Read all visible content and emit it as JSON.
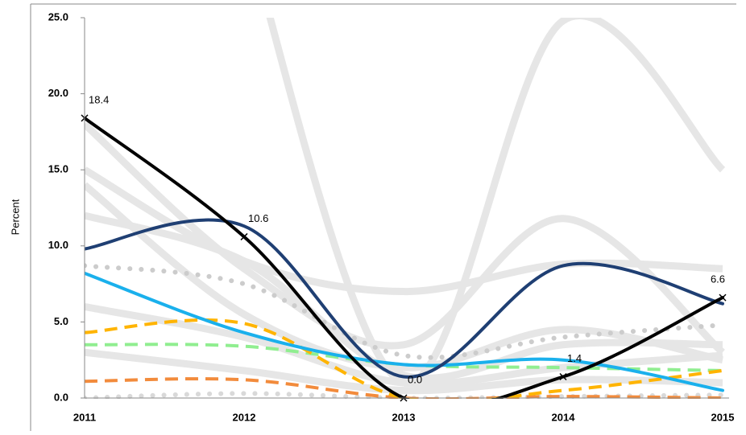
{
  "chart_data": {
    "type": "line",
    "y_label": "Percent",
    "categories": [
      "2011",
      "2012",
      "2013",
      "2014",
      "2015"
    ],
    "ylim": [
      0,
      25
    ],
    "yticks": [
      {
        "value": 0,
        "label": "0.0"
      },
      {
        "value": 5,
        "label": "5.0"
      },
      {
        "value": 10,
        "label": "10.0"
      },
      {
        "value": 15,
        "label": "15.0"
      },
      {
        "value": 20,
        "label": "20.0"
      },
      {
        "value": 25,
        "label": "25.0"
      }
    ],
    "smooth": true,
    "series": [
      {
        "color": "#e6e6e6",
        "style": "background",
        "values": [
          null,
          31,
          1.0,
          24.8,
          15.0
        ]
      },
      {
        "color": "#e6e6e6",
        "style": "background",
        "values": [
          18.0,
          8.5,
          3.5,
          11.8,
          3.0
        ]
      },
      {
        "color": "#e6e6e6",
        "style": "background",
        "values": [
          15.0,
          9.0,
          7.0,
          8.8,
          8.5
        ]
      },
      {
        "color": "#e6e6e6",
        "style": "background",
        "values": [
          14.0,
          5.5,
          2.0,
          4.5,
          2.5
        ]
      },
      {
        "color": "#e6e6e6",
        "style": "background",
        "values": [
          12.0,
          9.0,
          1.5,
          3.5,
          3.5
        ]
      },
      {
        "color": "#e6e6e6",
        "style": "background",
        "values": [
          6.0,
          4.0,
          1.0,
          2.0,
          2.8
        ]
      },
      {
        "color": "#e6e6e6",
        "style": "background",
        "values": [
          3.0,
          1.8,
          0.5,
          1.2,
          1.0
        ]
      },
      {
        "color": "#cccccc",
        "style": "dot",
        "values": [
          8.7,
          7.5,
          2.8,
          4.0,
          4.8
        ]
      },
      {
        "color": "#d9d9d9",
        "style": "dot",
        "values": [
          0.0,
          0.3,
          0.0,
          0.1,
          0.2
        ]
      },
      {
        "color": "#f28b3c",
        "style": "dash",
        "values": [
          1.1,
          1.2,
          0.0,
          0.1,
          0.0
        ]
      },
      {
        "color": "#90ee90",
        "style": "dash",
        "values": [
          3.5,
          3.4,
          2.2,
          2.0,
          1.8
        ]
      },
      {
        "color": "#ffb400",
        "style": "dash",
        "values": [
          4.3,
          4.9,
          0.0,
          0.5,
          1.8
        ]
      },
      {
        "color": "#1ab0ec",
        "style": "solid",
        "values": [
          8.2,
          4.3,
          2.2,
          2.5,
          0.5
        ]
      },
      {
        "color": "#1f3f73",
        "style": "solid",
        "values": [
          9.8,
          11.3,
          1.4,
          8.7,
          6.2
        ]
      },
      {
        "color": "#000000",
        "style": "solid",
        "markers": true,
        "values": [
          18.4,
          10.6,
          0.0,
          1.4,
          6.6
        ],
        "value_labels": [
          "18.4",
          "10.6",
          "0.0",
          "1.4",
          "6.6"
        ]
      }
    ]
  }
}
